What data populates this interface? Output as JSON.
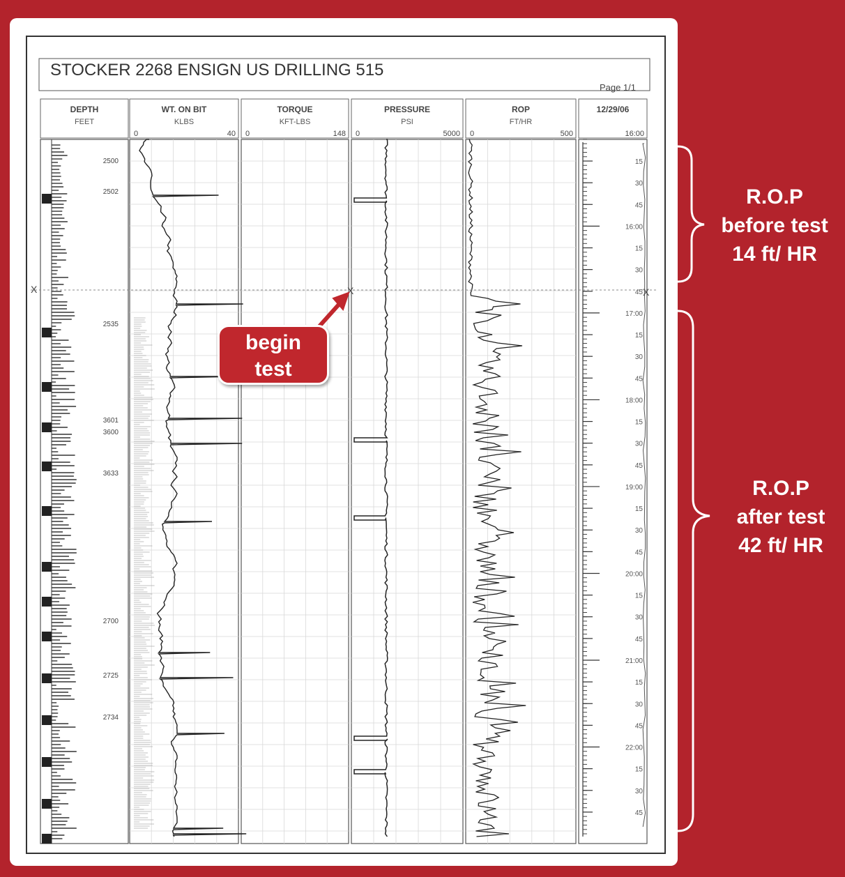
{
  "header": {
    "title": "STOCKER 2268 ENSIGN US DRILLING 515",
    "page": "Page 1/1"
  },
  "callout": {
    "line1": "begin",
    "line2": "test"
  },
  "annotations": {
    "before": {
      "line1": "R.O.P",
      "line2": "before test",
      "line3": "14 ft/ HR"
    },
    "after": {
      "line1": "R.O.P",
      "line2": "after test",
      "line3": "42 ft/ HR"
    }
  },
  "colors": {
    "background": "#b3232c",
    "trace": "#222222",
    "grid": "#d8d8d8"
  },
  "chart_data": {
    "type": "line",
    "title": "STOCKER 2268 ENSIGN US DRILLING 515",
    "tracks": [
      {
        "name": "DEPTH",
        "unit": "FEET",
        "min": "",
        "max": ""
      },
      {
        "name": "WT. ON BIT",
        "unit": "KLBS",
        "min": "0",
        "max": "40"
      },
      {
        "name": "TORQUE",
        "unit": "KFT-LBS",
        "min": "0",
        "max": "148"
      },
      {
        "name": "PRESSURE",
        "unit": "PSI",
        "min": "0",
        "max": "5000"
      },
      {
        "name": "ROP",
        "unit": "FT/HR",
        "min": "0",
        "max": "500"
      },
      {
        "name": "12/29/06",
        "unit": "",
        "min": "",
        "max": "16:00"
      }
    ],
    "depth_labels": [
      "2500",
      "2502",
      "2535",
      "3601",
      "3600",
      "3633",
      "2700",
      "2725",
      "2734"
    ],
    "time_labels": [
      "15",
      "30",
      "45",
      "16:00",
      "15",
      "30",
      "45",
      "17:00",
      "15",
      "30",
      "45",
      "18:00",
      "15",
      "30",
      "45",
      "19:00",
      "15",
      "30",
      "45",
      "20:00",
      "15",
      "30",
      "45",
      "21:00",
      "15",
      "30",
      "45",
      "22:00",
      "15",
      "30",
      "45"
    ],
    "rop_before_test": 14,
    "rop_after_test": 42,
    "test_start_time": "16:45"
  }
}
